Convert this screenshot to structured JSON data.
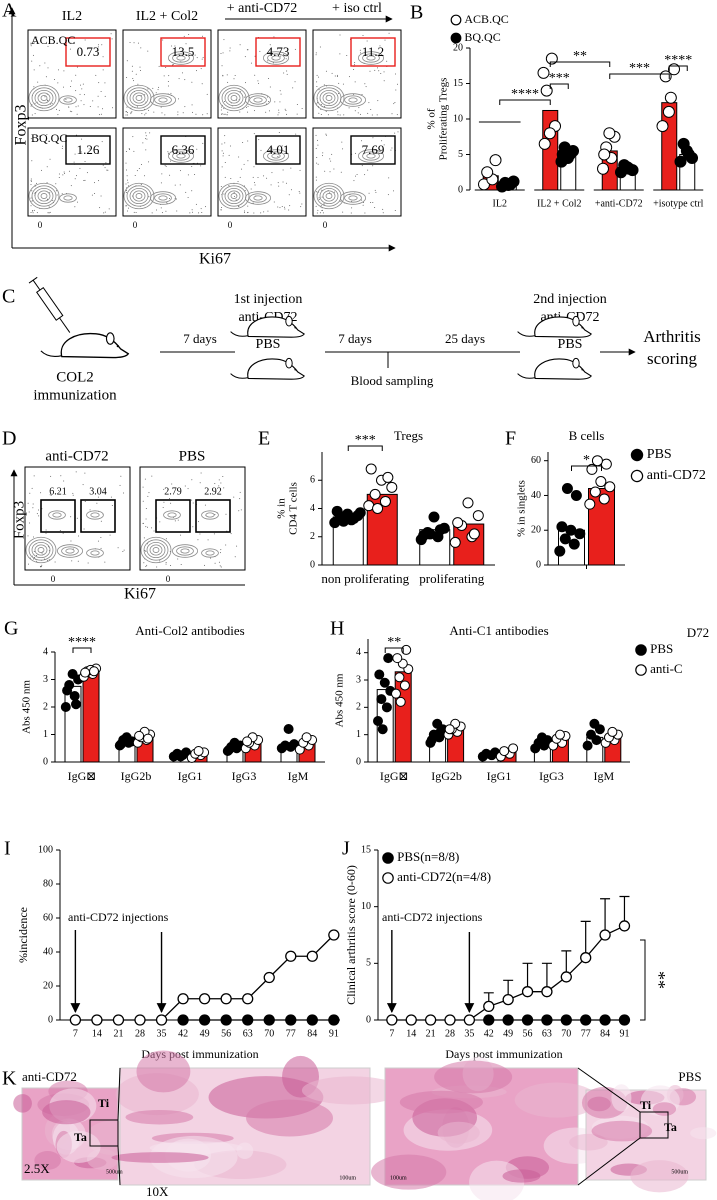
{
  "chart_data": [
    {
      "type": "bar",
      "label": "B",
      "ylabel": [
        "% of",
        "Proliferating Tregs"
      ],
      "categories": [
        "IL2",
        "IL2 + Col2",
        "+anti-CD72",
        "+isotype ctrl"
      ],
      "series": [
        {
          "name": "ACB.QC",
          "color": "#e8201c",
          "marker_fill": "#ffffff",
          "values": [
            2,
            11.2,
            5.5,
            12.3
          ],
          "points": [
            [
              0.8,
              1.5,
              2.5,
              4.2
            ],
            [
              16.5,
              18.5,
              14,
              9,
              8,
              6.5
            ],
            [
              3,
              4.5,
              6,
              7.5,
              8,
              5
            ],
            [
              9,
              13,
              16,
              17,
              11
            ]
          ]
        },
        {
          "name": "BQ.QC",
          "color": "#ffffff",
          "marker_fill": "#000000",
          "values": [
            0.9,
            5,
            3,
            5
          ],
          "points": [
            [
              0.5,
              0.8,
              1,
              1.2,
              0.7
            ],
            [
              4,
              5,
              6,
              5.5,
              4.5,
              5
            ],
            [
              2.5,
              3,
              3.5,
              2.8,
              3.2
            ],
            [
              4,
              5,
              6.5,
              4.5,
              5.5
            ]
          ]
        }
      ],
      "ylim": [
        0,
        20
      ],
      "yticks": [
        0,
        5,
        10,
        15,
        20
      ],
      "annotations": [
        "****",
        "**",
        "***",
        "***",
        "****"
      ]
    },
    {
      "type": "bar",
      "label": "E",
      "title": "Tregs",
      "ylabel": [
        "% in",
        "CD4 T cells"
      ],
      "categories": [
        "non proliferating",
        "proliferating"
      ],
      "series": [
        {
          "color": "#ffffff",
          "marker_fill": "#000000",
          "values": [
            3.4,
            2.5
          ],
          "points": [
            [
              3,
              3.2,
              3.4,
              3.5,
              3.6,
              3.8,
              3.3,
              3.1,
              3.7
            ],
            [
              1.8,
              2,
              2.3,
              2.6,
              3.4,
              2.1,
              2.5,
              2.2
            ]
          ]
        },
        {
          "color": "#e8201c",
          "marker_fill": "#ffffff",
          "values": [
            5,
            2.9
          ],
          "points": [
            [
              4.2,
              4.5,
              5,
              5.5,
              6,
              6.8,
              6.2,
              4
            ],
            [
              1.6,
              2,
              2.8,
              3.5,
              4.4,
              3,
              2.2
            ]
          ]
        }
      ],
      "ylim": [
        0,
        8
      ],
      "yticks": [
        0,
        2,
        4,
        6
      ],
      "annotations": [
        "***"
      ]
    },
    {
      "type": "bar",
      "label": "F",
      "title": "B cells",
      "ylabel": [
        "% in singlets"
      ],
      "series": [
        {
          "name": "PBS",
          "color": "#ffffff",
          "marker_fill": "#000000",
          "values": [
            20
          ],
          "points": [
            [
              8,
              12,
              15,
              18,
              20,
              22,
              40,
              44
            ]
          ]
        },
        {
          "name": "anti-CD72",
          "color": "#e8201c",
          "marker_fill": "#ffffff",
          "values": [
            44
          ],
          "points": [
            [
              35,
              38,
              42,
              45,
              48,
              55,
              58,
              60
            ]
          ]
        }
      ],
      "ylim": [
        0,
        65
      ],
      "yticks": [
        0,
        20,
        40,
        60
      ],
      "annotations": [
        "*"
      ]
    },
    {
      "type": "bar",
      "label": "G",
      "title": "Anti-Col2 antibodies",
      "ylabel": [
        "Abs 450 nm"
      ],
      "categories": [
        "IgG⊠",
        "IgG2b",
        "IgG1",
        "IgG3",
        "IgM"
      ],
      "series": [
        {
          "color": "#ffffff",
          "marker_fill": "#000000",
          "values": [
            2.75,
            0.75,
            0.25,
            0.55,
            0.6
          ],
          "points": [
            [
              2,
              2.4,
              2.8,
              3,
              3.2,
              2.6,
              2.1
            ],
            [
              0.6,
              0.7,
              0.8,
              0.75,
              0.9,
              0.65
            ],
            [
              0.2,
              0.25,
              0.3,
              0.35,
              0.2
            ],
            [
              0.4,
              0.5,
              0.55,
              0.6,
              0.7,
              0.45
            ],
            [
              0.5,
              0.55,
              0.6,
              0.65,
              1.2
            ]
          ]
        },
        {
          "color": "#e8201c",
          "marker_fill": "#ffffff",
          "values": [
            3.3,
            0.95,
            0.28,
            0.7,
            0.7
          ],
          "points": [
            [
              3.1,
              3.2,
              3.3,
              3.4,
              3.35,
              3.25,
              3.3
            ],
            [
              0.7,
              0.8,
              0.9,
              1,
              1.1,
              0.95,
              0.85
            ],
            [
              0.15,
              0.25,
              0.3,
              0.35,
              0.4
            ],
            [
              0.5,
              0.6,
              0.7,
              0.8,
              0.9,
              0.75
            ],
            [
              0.45,
              0.6,
              0.7,
              0.8,
              0.9
            ]
          ]
        }
      ],
      "ylim": [
        0,
        4
      ],
      "yticks": [
        0,
        1,
        2,
        3,
        4
      ],
      "annotations": [
        "****"
      ]
    },
    {
      "type": "bar",
      "label": "H",
      "title": "Anti-C1 antibodies",
      "ylabel": [
        "Abs 450 nm"
      ],
      "categories": [
        "IgG⊠",
        "IgG2b",
        "IgG1",
        "IgG3",
        "IgM"
      ],
      "series": [
        {
          "name": "PBS",
          "color": "#ffffff",
          "marker_fill": "#000000",
          "values": [
            2.65,
            1.05,
            0.28,
            0.72,
            0.9
          ],
          "points": [
            [
              1.5,
              2,
              2.3,
              2.6,
              2.9,
              3.2,
              3.8,
              1.2
            ],
            [
              0.7,
              0.9,
              1,
              1.2,
              1.4,
              0.8,
              1.1
            ],
            [
              0.2,
              0.25,
              0.3,
              0.35
            ],
            [
              0.5,
              0.6,
              0.7,
              0.8,
              0.9
            ],
            [
              0.6,
              0.8,
              1,
              1.2,
              1.4
            ]
          ]
        },
        {
          "name": "anti-C",
          "color": "#e8201c",
          "marker_fill": "#ffffff",
          "values": [
            3.3,
            1.25,
            0.35,
            0.85,
            0.95
          ],
          "points": [
            [
              2.5,
              2.8,
              3.1,
              3.4,
              3.6,
              3.8,
              4.1,
              2.2
            ],
            [
              1,
              1.1,
              1.2,
              1.3,
              1.4,
              1.2
            ],
            [
              0.2,
              0.3,
              0.4,
              0.5
            ],
            [
              0.6,
              0.7,
              0.85,
              0.95,
              1
            ],
            [
              0.7,
              0.8,
              0.9,
              1,
              1.1
            ]
          ]
        }
      ],
      "ylim": [
        0,
        4.5
      ],
      "yticks": [
        0,
        1,
        2,
        3,
        4
      ],
      "annotations": [
        "**"
      ],
      "note": "D72"
    },
    {
      "type": "line",
      "label": "I",
      "ylabel": "%incidence",
      "xlabel": "Days post immunization",
      "x": [
        7,
        14,
        21,
        28,
        35,
        42,
        49,
        56,
        63,
        70,
        77,
        84,
        91
      ],
      "xlim": [
        2,
        93
      ],
      "xticks": [
        7,
        14,
        21,
        28,
        35,
        42,
        49,
        56,
        63,
        70,
        77,
        84,
        91
      ],
      "series": [
        {
          "color": "#000000",
          "marker_fill": "#000000",
          "values": [
            null,
            null,
            null,
            null,
            null,
            0,
            0,
            0,
            0,
            0,
            0,
            0,
            0
          ]
        },
        {
          "color": "#000000",
          "marker_fill": "#ffffff",
          "values": [
            0,
            0,
            0,
            0,
            0,
            12.5,
            12.5,
            12.5,
            12.5,
            25,
            37.5,
            37.5,
            50
          ]
        }
      ],
      "ylim": [
        0,
        100
      ],
      "yticks": [
        0,
        20,
        40,
        60,
        80,
        100
      ],
      "annotation": "anti-CD72 injections"
    },
    {
      "type": "line",
      "label": "J",
      "ylabel": "Clinical arthritis score (0-60)",
      "xlabel": "Days post immunization",
      "x": [
        7,
        14,
        21,
        28,
        35,
        42,
        49,
        56,
        63,
        70,
        77,
        84,
        91
      ],
      "xlim": [
        2,
        93
      ],
      "xticks": [
        7,
        14,
        21,
        28,
        35,
        42,
        49,
        56,
        63,
        70,
        77,
        84,
        91
      ],
      "series": [
        {
          "name": "PBS(n=8/8)",
          "color": "#000000",
          "marker_fill": "#000000",
          "values": [
            null,
            null,
            null,
            null,
            null,
            0,
            0,
            0,
            0,
            0,
            0,
            0,
            0
          ]
        },
        {
          "name": "anti-CD72(n=4/8)",
          "color": "#000000",
          "marker_fill": "#ffffff",
          "values": [
            0,
            0,
            0,
            0,
            0,
            1.2,
            1.8,
            2.5,
            2.5,
            3.8,
            5.5,
            7.5,
            8.3
          ],
          "errors": [
            0,
            0,
            0,
            0,
            0,
            1.2,
            1.7,
            2.5,
            2.5,
            2.3,
            3.2,
            3.2,
            2.6
          ]
        }
      ],
      "ylim": [
        0,
        15
      ],
      "yticks": [
        0,
        5,
        10,
        15
      ],
      "annotation": "anti-CD72 injections",
      "significance": "**"
    }
  ],
  "panel_a": {
    "label": "A",
    "columns": [
      "IL2",
      "IL2 + Col2",
      "+ anti-CD72",
      "+ iso ctrl"
    ],
    "rows": [
      {
        "name": "ACB.QC",
        "gates": [
          0.73,
          13.5,
          4.73,
          11.2
        ]
      },
      {
        "name": "BQ.QC",
        "gates": [
          1.26,
          6.36,
          4.01,
          7.69
        ]
      }
    ],
    "x_tick": "0",
    "ylabel": "Foxp3",
    "xlabel": "Ki67"
  },
  "panel_c": {
    "label": "C",
    "immunization": [
      "COL2",
      "immunization"
    ],
    "interval1": "7 days",
    "injection1": [
      "1st injection",
      "anti-CD72"
    ],
    "control1": "PBS",
    "interval2": "7 days",
    "interval3": "25 days",
    "sampling": "Blood sampling",
    "injection2": [
      "2nd injection",
      "anti-CD72"
    ],
    "control2": "PBS",
    "outcome": [
      "Arthritis",
      "scoring"
    ]
  },
  "panel_d": {
    "label": "D",
    "plots": [
      {
        "name": "anti-CD72",
        "gates": [
          6.21,
          3.04
        ]
      },
      {
        "name": "PBS",
        "gates": [
          2.79,
          2.92
        ]
      }
    ],
    "x_tick": "0",
    "ylabel": "Foxp3",
    "xlabel": "Ki67"
  },
  "panel_k": {
    "label": "K",
    "left_group": "anti-CD72",
    "right_group": "PBS",
    "tissue_labels": [
      "Ti",
      "Ta"
    ],
    "magnifications": [
      "2.5X",
      "10X"
    ],
    "scale_bars": [
      "500um",
      "100um"
    ]
  }
}
